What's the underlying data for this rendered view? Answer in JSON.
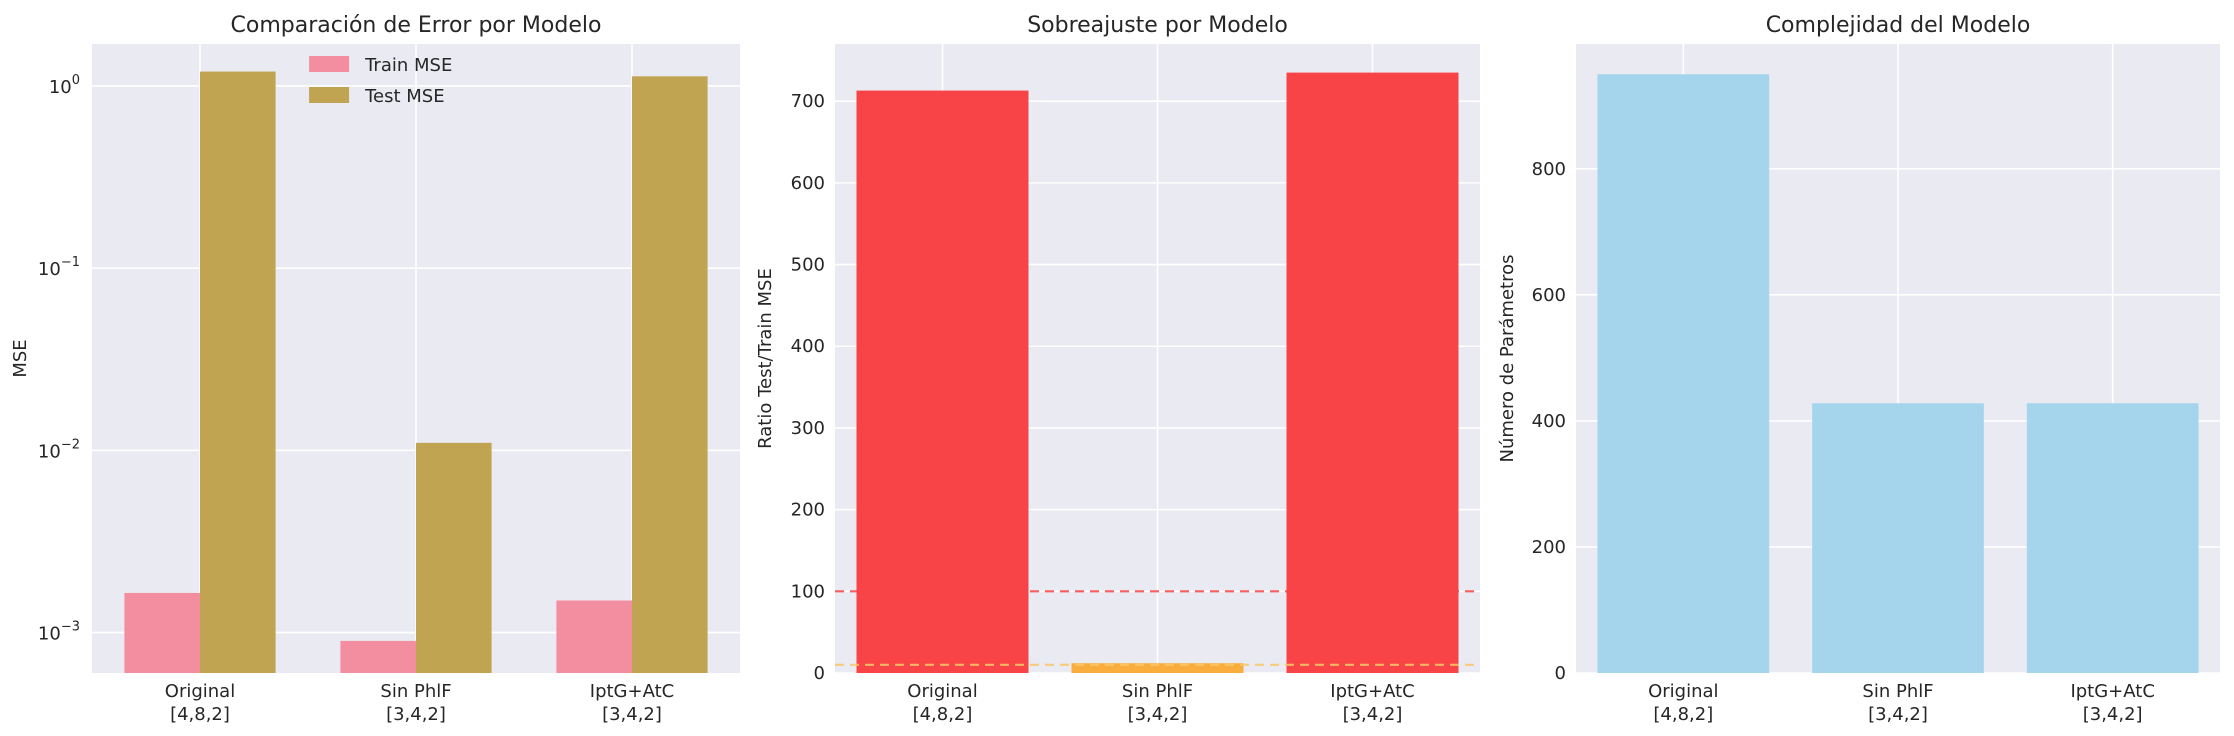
{
  "chart_data": [
    {
      "type": "bar",
      "title": "Comparación de Error por Modelo",
      "xlabel": "",
      "ylabel": "MSE",
      "yscale": "log",
      "ylim": [
        0.0006,
        1.7
      ],
      "yticks": [
        {
          "value": 0.001,
          "base": "10",
          "exp": "−3"
        },
        {
          "value": 0.01,
          "base": "10",
          "exp": "−2"
        },
        {
          "value": 0.1,
          "base": "10",
          "exp": "−1"
        },
        {
          "value": 1,
          "base": "10",
          "exp": "0"
        }
      ],
      "categories": [
        [
          "Original",
          "[4,8,2]"
        ],
        [
          "Sin PhlF",
          "[3,4,2]"
        ],
        [
          "IptG+AtC",
          "[3,4,2]"
        ]
      ],
      "series": [
        {
          "name": "Train MSE",
          "color": "#f38da0",
          "values": [
            0.00165,
            0.0009,
            0.0015
          ]
        },
        {
          "name": "Test MSE",
          "color": "#c1a452",
          "values": [
            1.2,
            0.011,
            1.13
          ]
        }
      ],
      "legend": "top-center",
      "grid": true
    },
    {
      "type": "bar",
      "title": "Sobreajuste por Modelo",
      "xlabel": "",
      "ylabel": "Ratio Test/Train MSE",
      "ylim": [
        0,
        770
      ],
      "yticks": [
        0,
        100,
        200,
        300,
        400,
        500,
        600,
        700
      ],
      "categories": [
        [
          "Original",
          "[4,8,2]"
        ],
        [
          "Sin PhlF",
          "[3,4,2]"
        ],
        [
          "IptG+AtC",
          "[3,4,2]"
        ]
      ],
      "values": [
        713,
        12,
        735
      ],
      "bar_colors": [
        "#f84446",
        "#f9ad3c",
        "#f84446"
      ],
      "hlines": [
        {
          "y": 100,
          "color": "#f84446",
          "style": "dashed"
        },
        {
          "y": 10,
          "color": "#f9c96a",
          "style": "dashed"
        }
      ],
      "grid": true
    },
    {
      "type": "bar",
      "title": "Complejidad del Modelo",
      "xlabel": "",
      "ylabel": "Número de Parámetros",
      "ylim": [
        0,
        998
      ],
      "yticks": [
        0,
        200,
        400,
        600,
        800
      ],
      "categories": [
        [
          "Original",
          "[4,8,2]"
        ],
        [
          "Sin PhlF",
          "[3,4,2]"
        ],
        [
          "IptG+AtC",
          "[3,4,2]"
        ]
      ],
      "values": [
        950,
        428,
        428
      ],
      "bar_colors": [
        "#a5d5ec",
        "#a5d5ec",
        "#a5d5ec"
      ],
      "grid": true
    }
  ]
}
